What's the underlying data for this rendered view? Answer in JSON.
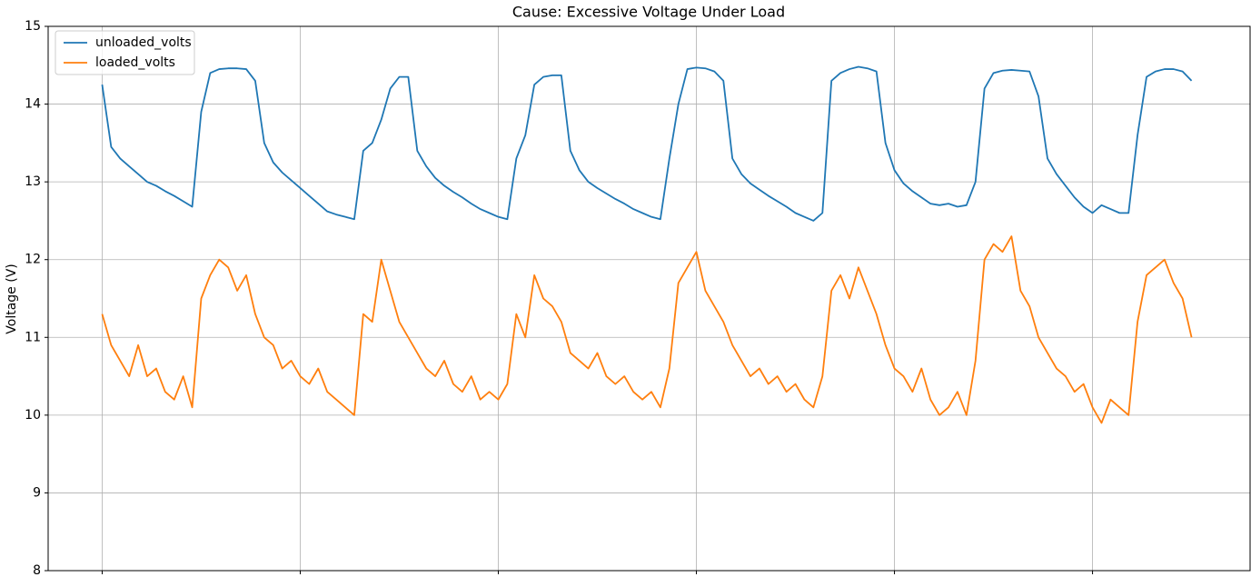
{
  "chart_data": {
    "type": "line",
    "title": "Cause: Excessive Voltage Under Load",
    "y_label": "Voltage (V)",
    "xlim": [
      -6,
      127.5
    ],
    "xticks": [
      0,
      22,
      44,
      66,
      88,
      110
    ],
    "ylim": [
      8,
      15
    ],
    "yticks": [
      8,
      9,
      10,
      11,
      12,
      13,
      14,
      15
    ],
    "grid": true,
    "legend": "upper left",
    "series": [
      {
        "name": "unloaded_volts",
        "color": "#1f77b4",
        "values": [
          14.25,
          13.45,
          13.3,
          13.2,
          13.1,
          13.0,
          12.95,
          12.88,
          12.82,
          12.75,
          12.68,
          13.9,
          14.4,
          14.45,
          14.46,
          14.46,
          14.45,
          14.3,
          13.5,
          13.25,
          13.12,
          13.02,
          12.92,
          12.82,
          12.72,
          12.62,
          12.58,
          12.55,
          12.52,
          13.4,
          13.5,
          13.8,
          14.2,
          14.35,
          14.35,
          13.4,
          13.2,
          13.05,
          12.95,
          12.87,
          12.8,
          12.72,
          12.65,
          12.6,
          12.55,
          12.52,
          13.3,
          13.6,
          14.25,
          14.35,
          14.37,
          14.37,
          13.4,
          13.15,
          13.0,
          12.92,
          12.85,
          12.78,
          12.72,
          12.65,
          12.6,
          12.55,
          12.52,
          13.3,
          14.0,
          14.45,
          14.47,
          14.46,
          14.42,
          14.3,
          13.3,
          13.1,
          12.98,
          12.9,
          12.82,
          12.75,
          12.68,
          12.6,
          12.55,
          12.5,
          12.6,
          14.3,
          14.4,
          14.45,
          14.48,
          14.46,
          14.42,
          13.5,
          13.15,
          12.98,
          12.88,
          12.8,
          12.72,
          12.7,
          12.72,
          12.68,
          12.7,
          13.0,
          14.2,
          14.4,
          14.43,
          14.44,
          14.43,
          14.42,
          14.1,
          13.3,
          13.1,
          12.95,
          12.8,
          12.68,
          12.6,
          12.7,
          12.65,
          12.6,
          12.6,
          13.6,
          14.35,
          14.42,
          14.45,
          14.45,
          14.42,
          14.3
        ]
      },
      {
        "name": "loaded_volts",
        "color": "#ff7f0e",
        "values": [
          11.3,
          10.9,
          10.7,
          10.5,
          10.9,
          10.5,
          10.6,
          10.3,
          10.2,
          10.5,
          10.1,
          11.5,
          11.8,
          12.0,
          11.9,
          11.6,
          11.8,
          11.3,
          11.0,
          10.9,
          10.6,
          10.7,
          10.5,
          10.4,
          10.6,
          10.3,
          10.2,
          10.1,
          10.0,
          11.3,
          11.2,
          12.0,
          11.6,
          11.2,
          11.0,
          10.8,
          10.6,
          10.5,
          10.7,
          10.4,
          10.3,
          10.5,
          10.2,
          10.3,
          10.2,
          10.4,
          11.3,
          11.0,
          11.8,
          11.5,
          11.4,
          11.2,
          10.8,
          10.7,
          10.6,
          10.8,
          10.5,
          10.4,
          10.5,
          10.3,
          10.2,
          10.3,
          10.1,
          10.6,
          11.7,
          11.9,
          12.1,
          11.6,
          11.4,
          11.2,
          10.9,
          10.7,
          10.5,
          10.6,
          10.4,
          10.5,
          10.3,
          10.4,
          10.2,
          10.1,
          10.5,
          11.6,
          11.8,
          11.5,
          11.9,
          11.6,
          11.3,
          10.9,
          10.6,
          10.5,
          10.3,
          10.6,
          10.2,
          10.0,
          10.1,
          10.3,
          10.0,
          10.7,
          12.0,
          12.2,
          12.1,
          12.3,
          11.6,
          11.4,
          11.0,
          10.8,
          10.6,
          10.5,
          10.3,
          10.4,
          10.1,
          9.9,
          10.2,
          10.1,
          10.0,
          11.2,
          11.8,
          11.9,
          12.0,
          11.7,
          11.5,
          11.0
        ]
      }
    ]
  }
}
